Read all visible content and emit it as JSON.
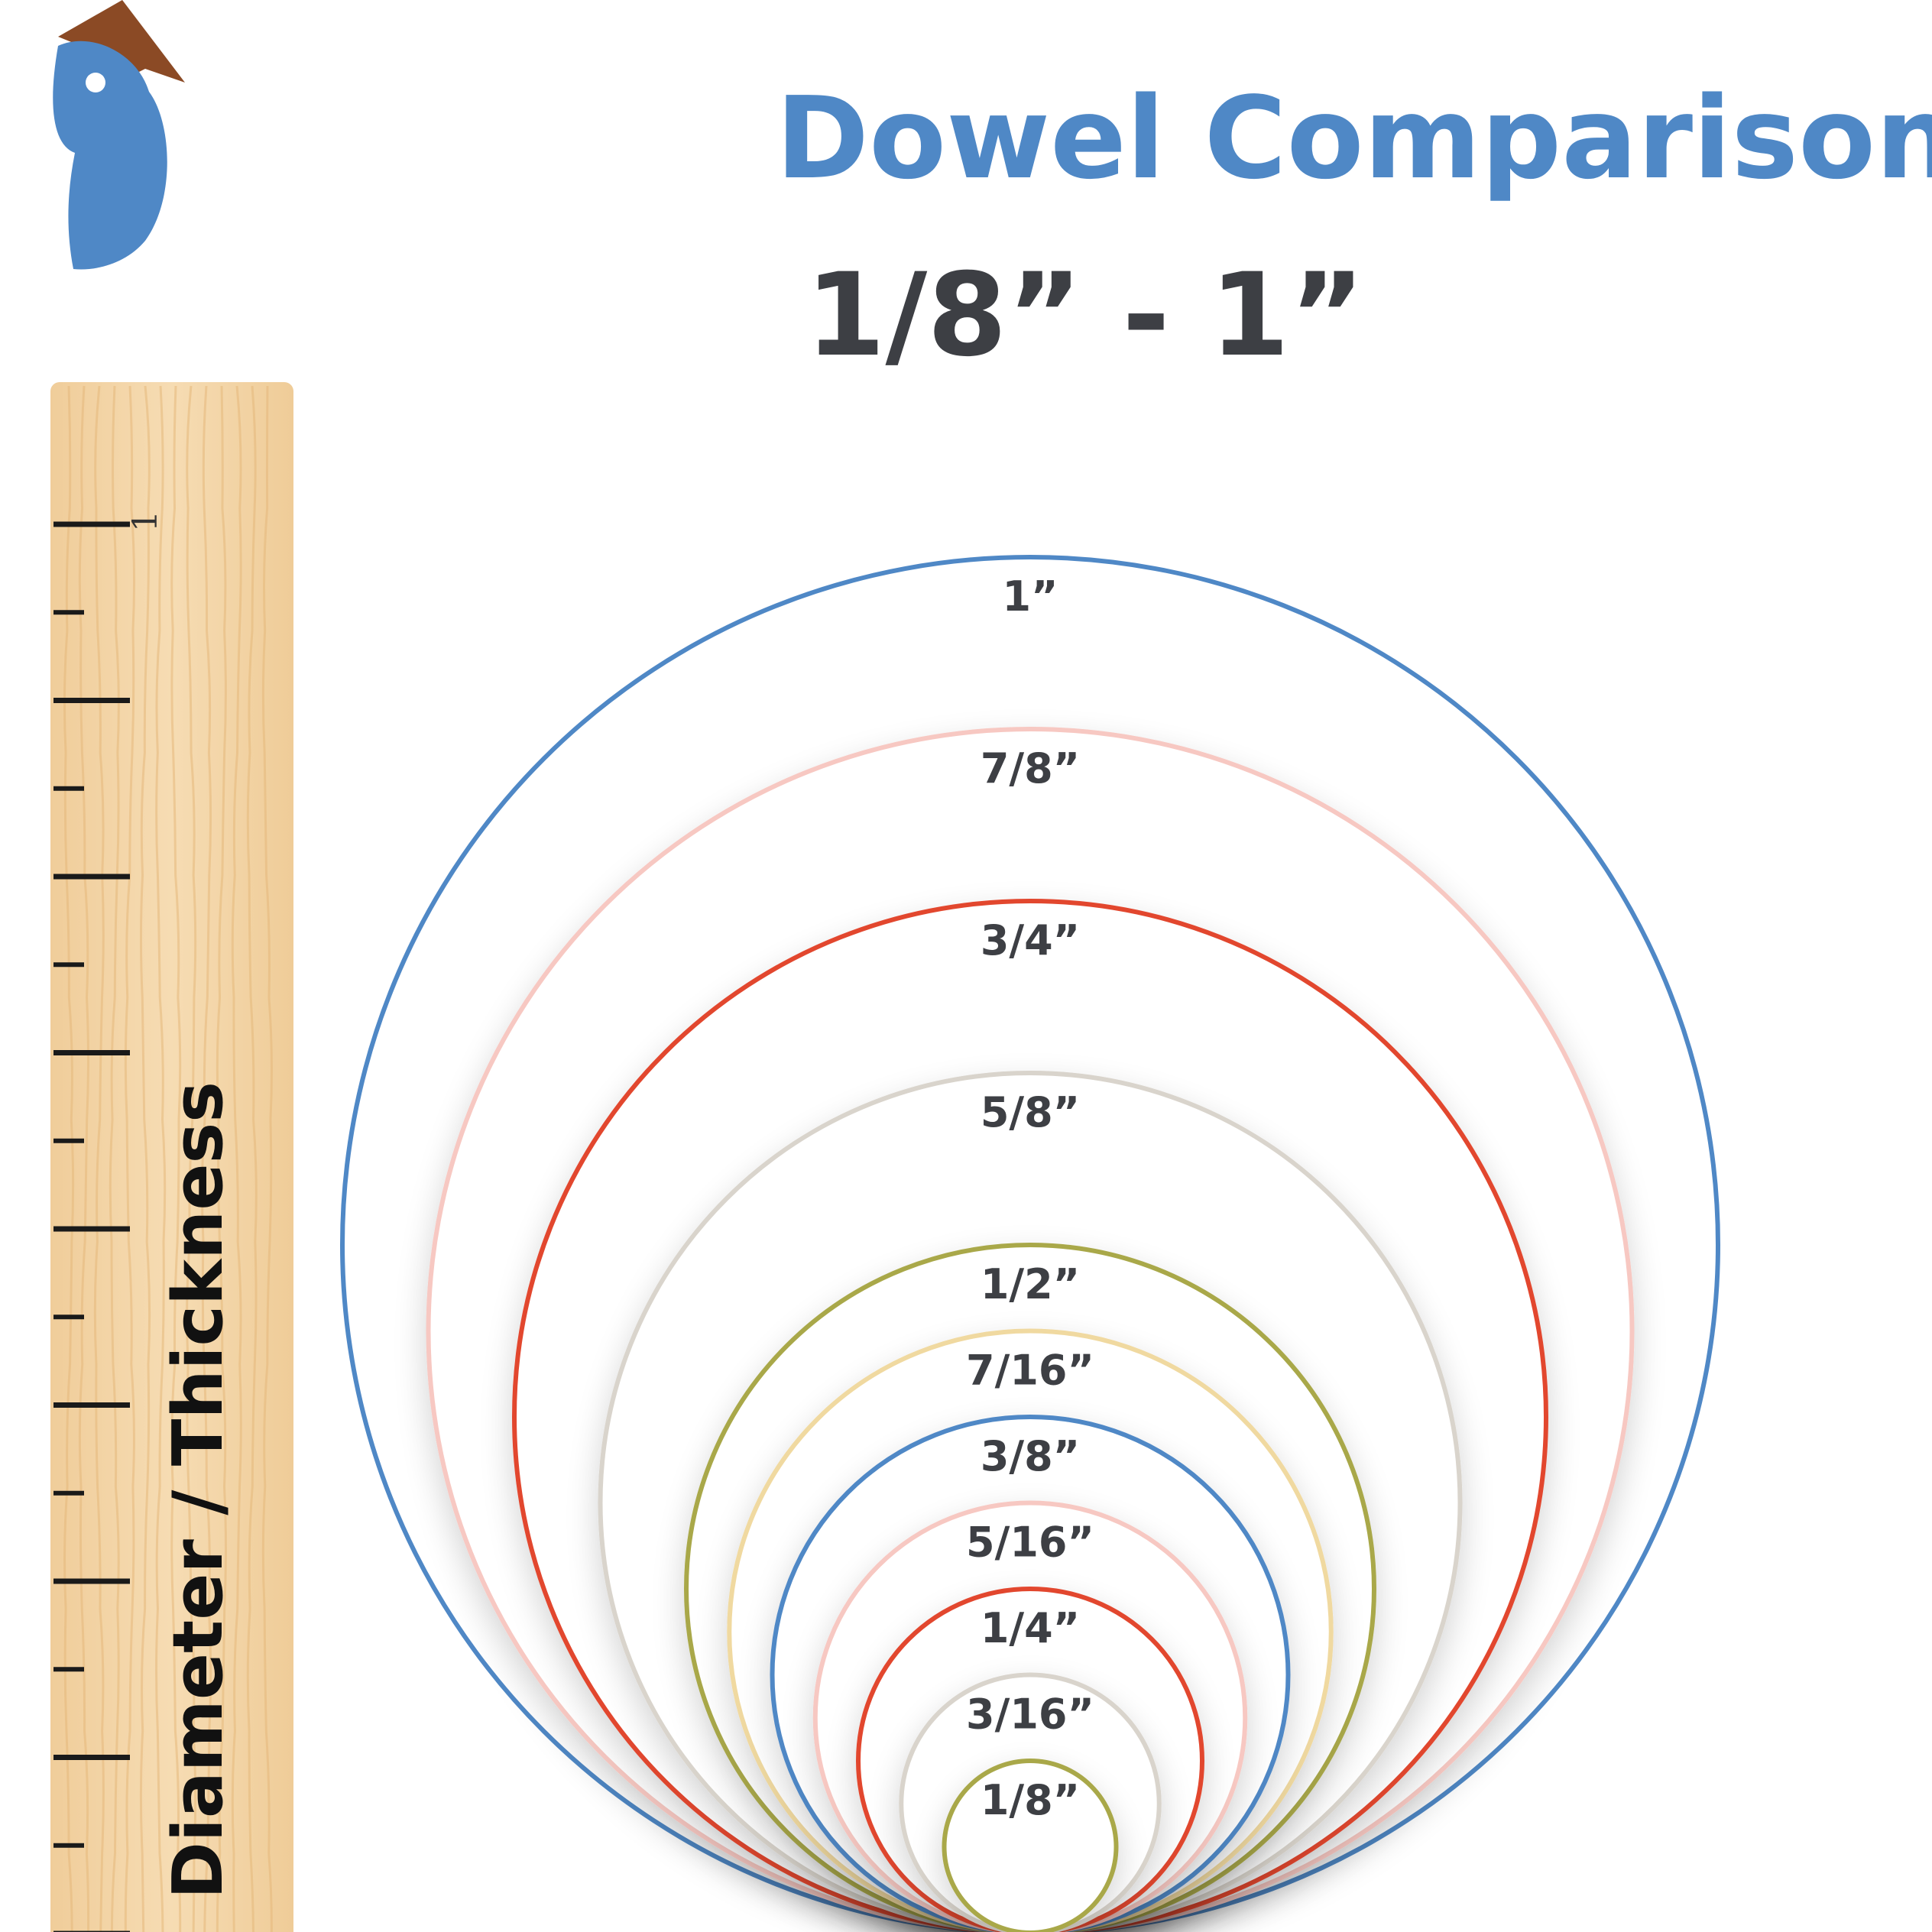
{
  "header": {
    "title": "Dowel Comparison Chart",
    "subtitle": "1/8” - 1”"
  },
  "logo": {
    "icon": "bird-logo-icon",
    "colors": {
      "head": "#4f88c6",
      "beak": "#8b4a25"
    }
  },
  "ruler": {
    "label": "Diameter / Thickness",
    "inch_label": "1",
    "tick_count": 17,
    "wood_color": "#f3d6a9"
  },
  "circles": [
    {
      "label": "1”",
      "diameter_in": 1.0,
      "color": "#4f88c6"
    },
    {
      "label": "7/8”",
      "diameter_in": 0.875,
      "color": "#f7c8c2"
    },
    {
      "label": "3/4”",
      "diameter_in": 0.75,
      "color": "#e2462f"
    },
    {
      "label": "5/8”",
      "diameter_in": 0.625,
      "color": "#d9d4cc"
    },
    {
      "label": "1/2”",
      "diameter_in": 0.5,
      "color": "#a9a84a"
    },
    {
      "label": "7/16”",
      "diameter_in": 0.4375,
      "color": "#f0d9a0"
    },
    {
      "label": "3/8”",
      "diameter_in": 0.375,
      "color": "#4f88c6"
    },
    {
      "label": "5/16”",
      "diameter_in": 0.3125,
      "color": "#f7c8c2"
    },
    {
      "label": "1/4”",
      "diameter_in": 0.25,
      "color": "#e2462f"
    },
    {
      "label": "3/16”",
      "diameter_in": 0.1875,
      "color": "#d9d4cc"
    },
    {
      "label": "1/8”",
      "diameter_in": 0.125,
      "color": "#a9a84a"
    }
  ],
  "colors": {
    "title_blue": "#4f88c6",
    "dark_text": "#3d3f44"
  }
}
